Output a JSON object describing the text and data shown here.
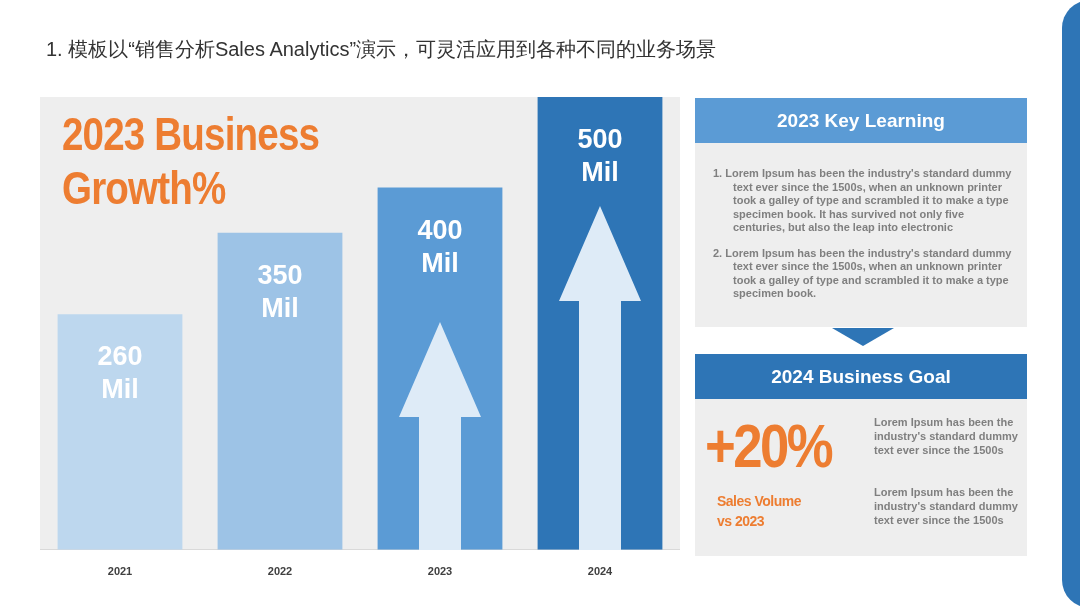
{
  "chart_data": [
    {
      "type": "bar",
      "title": "2023 Business Growth%",
      "annotations": [
        "1. 模板以“销售分析Sales Analytics”演示，可灵活应用到各种不同的业务场景"
      ],
      "categories": [
        "2021",
        "2022",
        "2023",
        "2024"
      ],
      "values": [
        260,
        350,
        400,
        500
      ],
      "colors": [
        "#bdd7ee",
        "#9dc3e6",
        "#5b9bd5",
        "#2e75b6"
      ],
      "value_labels": [
        "260 Mil",
        "350 Mil",
        "400 Mil",
        "500 Mil"
      ]
    },
    {
      "type": "other",
      "title": "2023 Key Learning",
      "annotations": [
        "1. Lorem Ipsum has been the industry's standard dummy text ever since the 1500s, when an unknown printer took a galley of type and scrambled it to make a type specimen book. It has survived not only five centuries, but also the leap into electronic",
        "2. Lorem Ipsum has been the industry's standard dummy text ever since the 1500s, when an unknown printer took a galley of type and scrambled it to make a type specimen book."
      ]
    },
    {
      "type": "other",
      "title": "2024 Business Goal",
      "annotations": [
        "+20%",
        "Sales Volume vs 2023",
        "Lorem Ipsum has been the industry's standard dummy text ever since the 1500s",
        "Lorem Ipsum has been the industry's standard dummy text ever since the 1500s"
      ]
    }
  ]
}
